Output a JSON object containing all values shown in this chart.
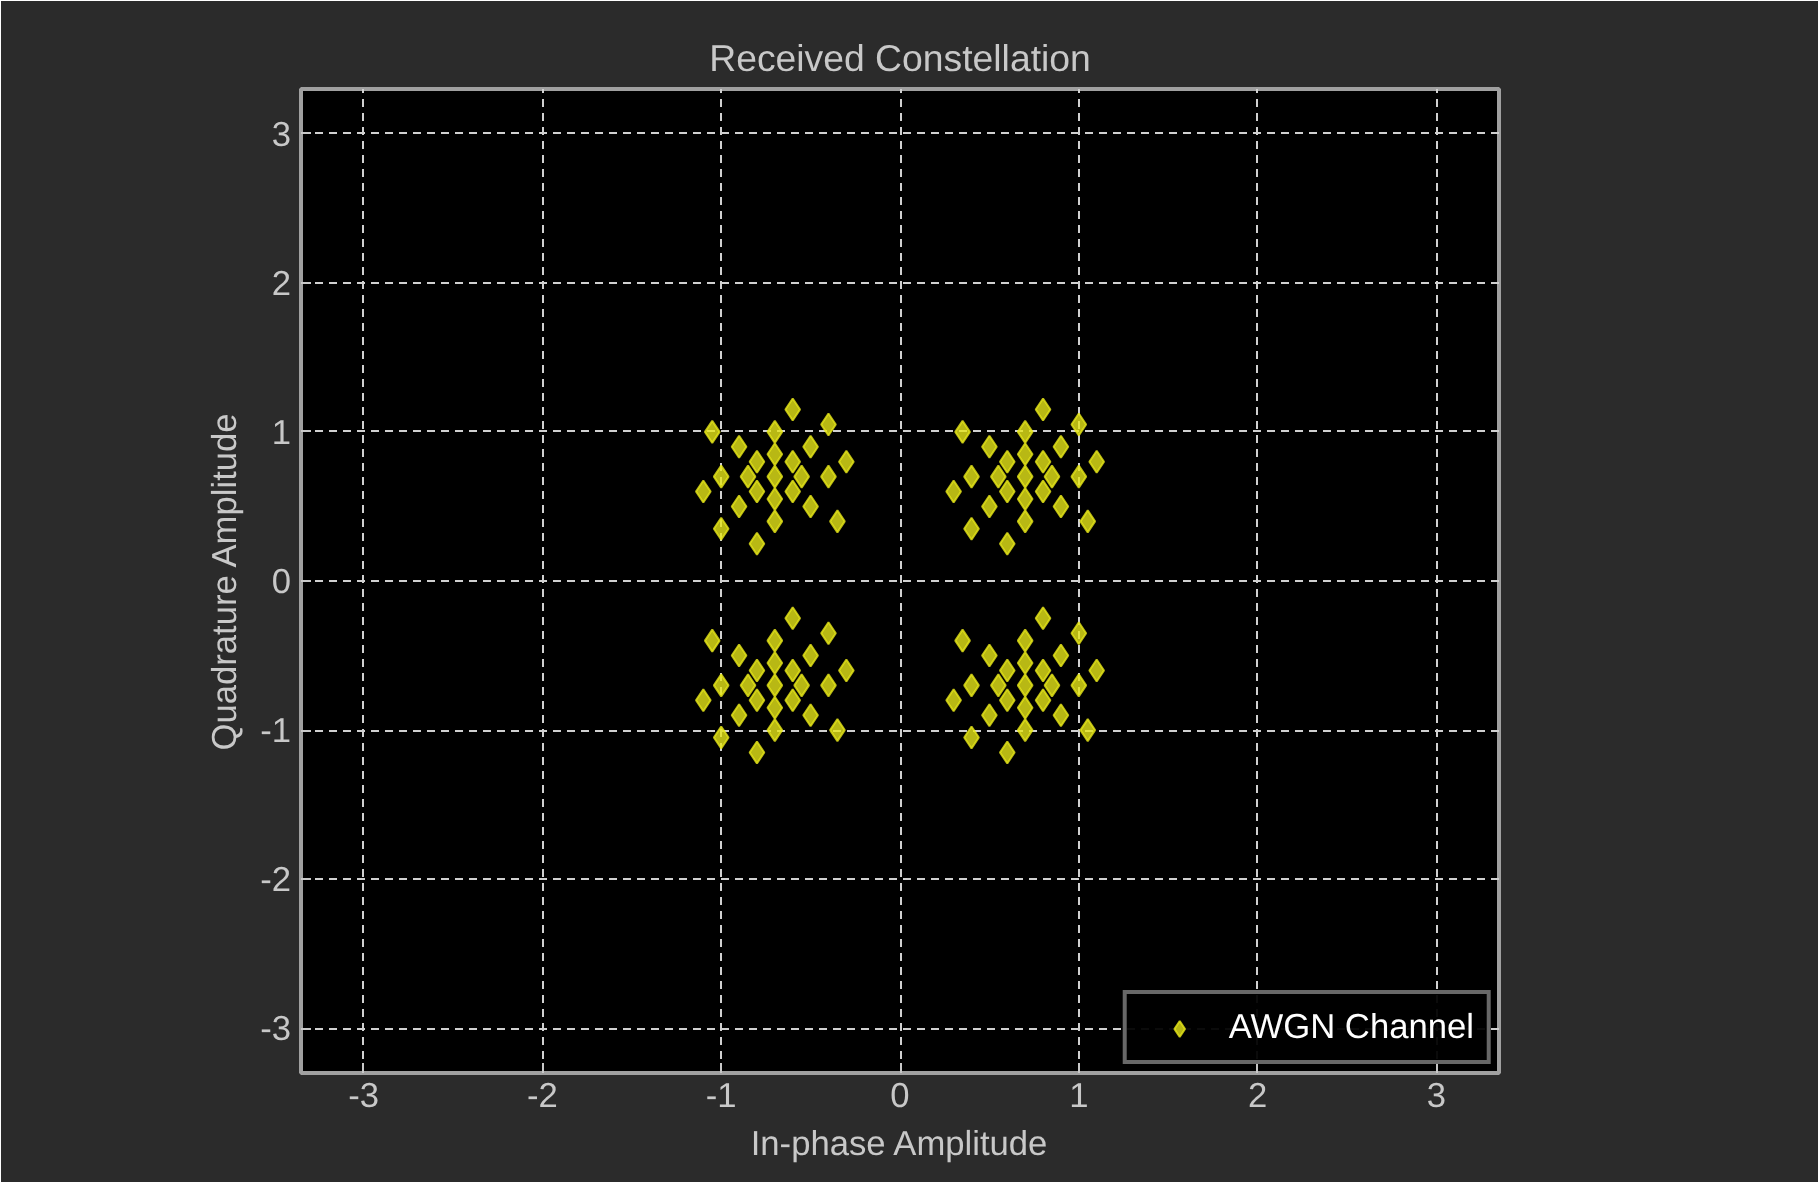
{
  "chart_data": {
    "type": "scatter",
    "title": "Received Constellation",
    "xlabel": "In-phase Amplitude",
    "ylabel": "Quadrature Amplitude",
    "xlim": [
      -3.35,
      3.35
    ],
    "ylim": [
      -3.3,
      3.3
    ],
    "xticks": [
      -3,
      -2,
      -1,
      0,
      1,
      2,
      3
    ],
    "yticks": [
      -3,
      -2,
      -1,
      0,
      1,
      2,
      3
    ],
    "grid": true,
    "legend": "bottom right",
    "marker": "diamond",
    "series": [
      {
        "name": "AWGN Channel",
        "color": "#e6e619",
        "x": [
          -0.7,
          -0.55,
          -0.85,
          -0.7,
          -0.7,
          -0.6,
          -0.8,
          -0.6,
          -0.8,
          -0.4,
          -1.0,
          -0.7,
          -0.7,
          -0.5,
          -0.9,
          -0.5,
          -0.9,
          -0.3,
          -1.1,
          -0.6,
          -0.8,
          -0.35,
          -1.05,
          -0.4,
          -1.0,
          0.7,
          0.85,
          0.55,
          0.7,
          0.7,
          0.8,
          0.6,
          0.8,
          0.6,
          1.0,
          0.4,
          0.7,
          0.7,
          0.9,
          0.5,
          0.9,
          0.5,
          1.1,
          0.3,
          0.8,
          0.6,
          1.05,
          0.35,
          1.0,
          0.4,
          -0.7,
          -0.55,
          -0.85,
          -0.7,
          -0.7,
          -0.6,
          -0.8,
          -0.6,
          -0.8,
          -0.4,
          -1.0,
          -0.7,
          -0.7,
          -0.5,
          -0.9,
          -0.5,
          -0.9,
          -0.3,
          -1.1,
          -0.6,
          -0.8,
          -0.35,
          -1.05,
          -0.4,
          -1.0,
          0.7,
          0.85,
          0.55,
          0.7,
          0.7,
          0.8,
          0.6,
          0.8,
          0.6,
          1.0,
          0.4,
          0.7,
          0.7,
          0.9,
          0.5,
          0.9,
          0.5,
          1.1,
          0.3,
          0.8,
          0.6,
          1.05,
          0.35,
          1.0,
          0.4
        ],
        "values": [
          0.7,
          0.7,
          0.7,
          0.85,
          0.55,
          0.8,
          0.8,
          0.6,
          0.6,
          0.7,
          0.7,
          1.0,
          0.4,
          0.9,
          0.9,
          0.5,
          0.5,
          0.8,
          0.6,
          1.15,
          0.25,
          0.4,
          1.0,
          1.05,
          0.35,
          0.7,
          0.7,
          0.7,
          0.85,
          0.55,
          0.8,
          0.8,
          0.6,
          0.6,
          0.7,
          0.7,
          1.0,
          0.4,
          0.9,
          0.9,
          0.5,
          0.5,
          0.8,
          0.6,
          1.15,
          0.25,
          0.4,
          1.0,
          1.05,
          0.35,
          -0.7,
          -0.7,
          -0.7,
          -0.55,
          -0.85,
          -0.6,
          -0.6,
          -0.8,
          -0.8,
          -0.7,
          -0.7,
          -0.4,
          -1.0,
          -0.5,
          -0.5,
          -0.9,
          -0.9,
          -0.6,
          -0.8,
          -0.25,
          -1.15,
          -1.0,
          -0.4,
          -0.35,
          -1.05,
          -0.7,
          -0.7,
          -0.7,
          -0.55,
          -0.85,
          -0.6,
          -0.6,
          -0.8,
          -0.8,
          -0.7,
          -0.7,
          -0.4,
          -1.0,
          -0.5,
          -0.5,
          -0.9,
          -0.9,
          -0.6,
          -0.8,
          -0.25,
          -1.15,
          -1.0,
          -0.4,
          -0.35,
          -1.05
        ]
      }
    ]
  }
}
